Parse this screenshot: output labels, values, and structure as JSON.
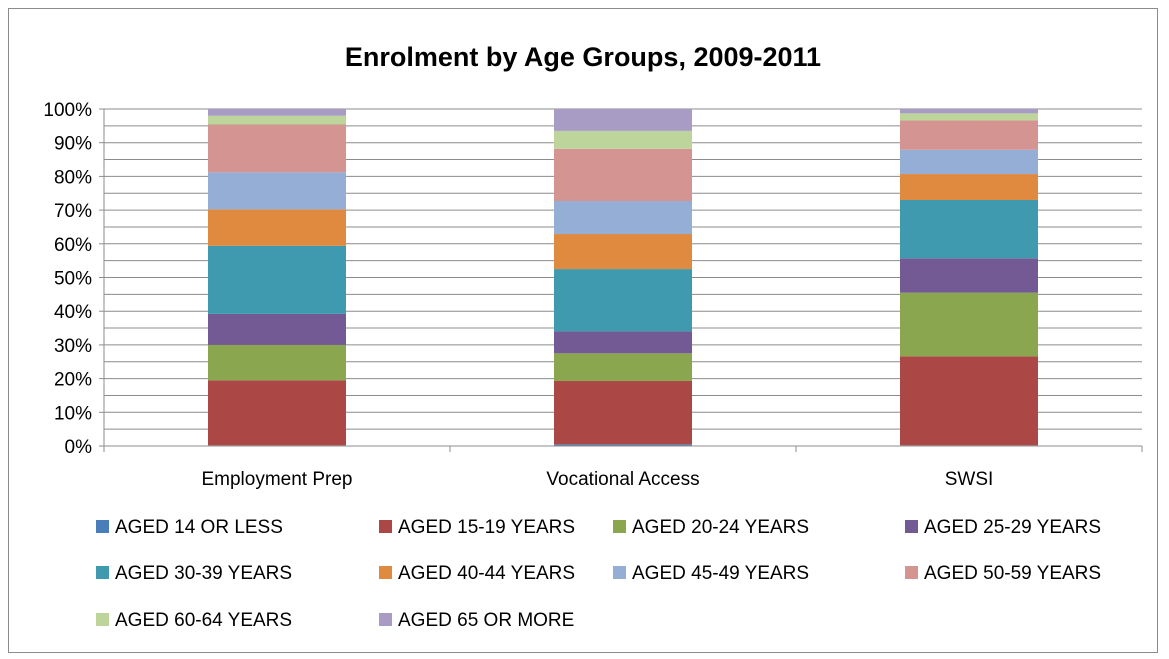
{
  "chart_data": {
    "type": "bar",
    "stacked": true,
    "percent_stacked": true,
    "title": "Enrolment by Age Groups, 2009-2011",
    "xlabel": "",
    "ylabel": "",
    "ylim": [
      0,
      100
    ],
    "y_ticks": [
      "0%",
      "10%",
      "20%",
      "30%",
      "40%",
      "50%",
      "60%",
      "70%",
      "80%",
      "90%",
      "100%"
    ],
    "grid": true,
    "legend_position": "bottom",
    "categories": [
      "Employment Prep",
      "Vocational Access",
      "SWSI"
    ],
    "series": [
      {
        "name": "AGED 14 OR LESS",
        "color": "#4a7ebb",
        "values": [
          0.2,
          0.5,
          0.2
        ]
      },
      {
        "name": "AGED 15-19 YEARS",
        "color": "#ab4744",
        "values": [
          19.3,
          18.8,
          26.4
        ]
      },
      {
        "name": "AGED 20-24 YEARS",
        "color": "#8aa64e",
        "values": [
          10.5,
          8.2,
          18.9
        ]
      },
      {
        "name": "AGED 25-29 YEARS",
        "color": "#735a94",
        "values": [
          9.2,
          6.5,
          10.2
        ]
      },
      {
        "name": "AGED 30-39 YEARS",
        "color": "#3f9aaf",
        "values": [
          20.2,
          18.5,
          17.3
        ]
      },
      {
        "name": "AGED 40-44 YEARS",
        "color": "#e08a40",
        "values": [
          10.8,
          10.4,
          7.7
        ]
      },
      {
        "name": "AGED 45-49 YEARS",
        "color": "#94aed6",
        "values": [
          11.0,
          9.8,
          7.2
        ]
      },
      {
        "name": "AGED 50-59 YEARS",
        "color": "#d49592",
        "values": [
          14.2,
          15.5,
          8.7
        ]
      },
      {
        "name": "AGED 60-64 YEARS",
        "color": "#bdd59b",
        "values": [
          2.6,
          5.3,
          2.1
        ]
      },
      {
        "name": "AGED 65 OR MORE",
        "color": "#a99cc4",
        "values": [
          2.0,
          6.5,
          1.3
        ]
      }
    ]
  }
}
